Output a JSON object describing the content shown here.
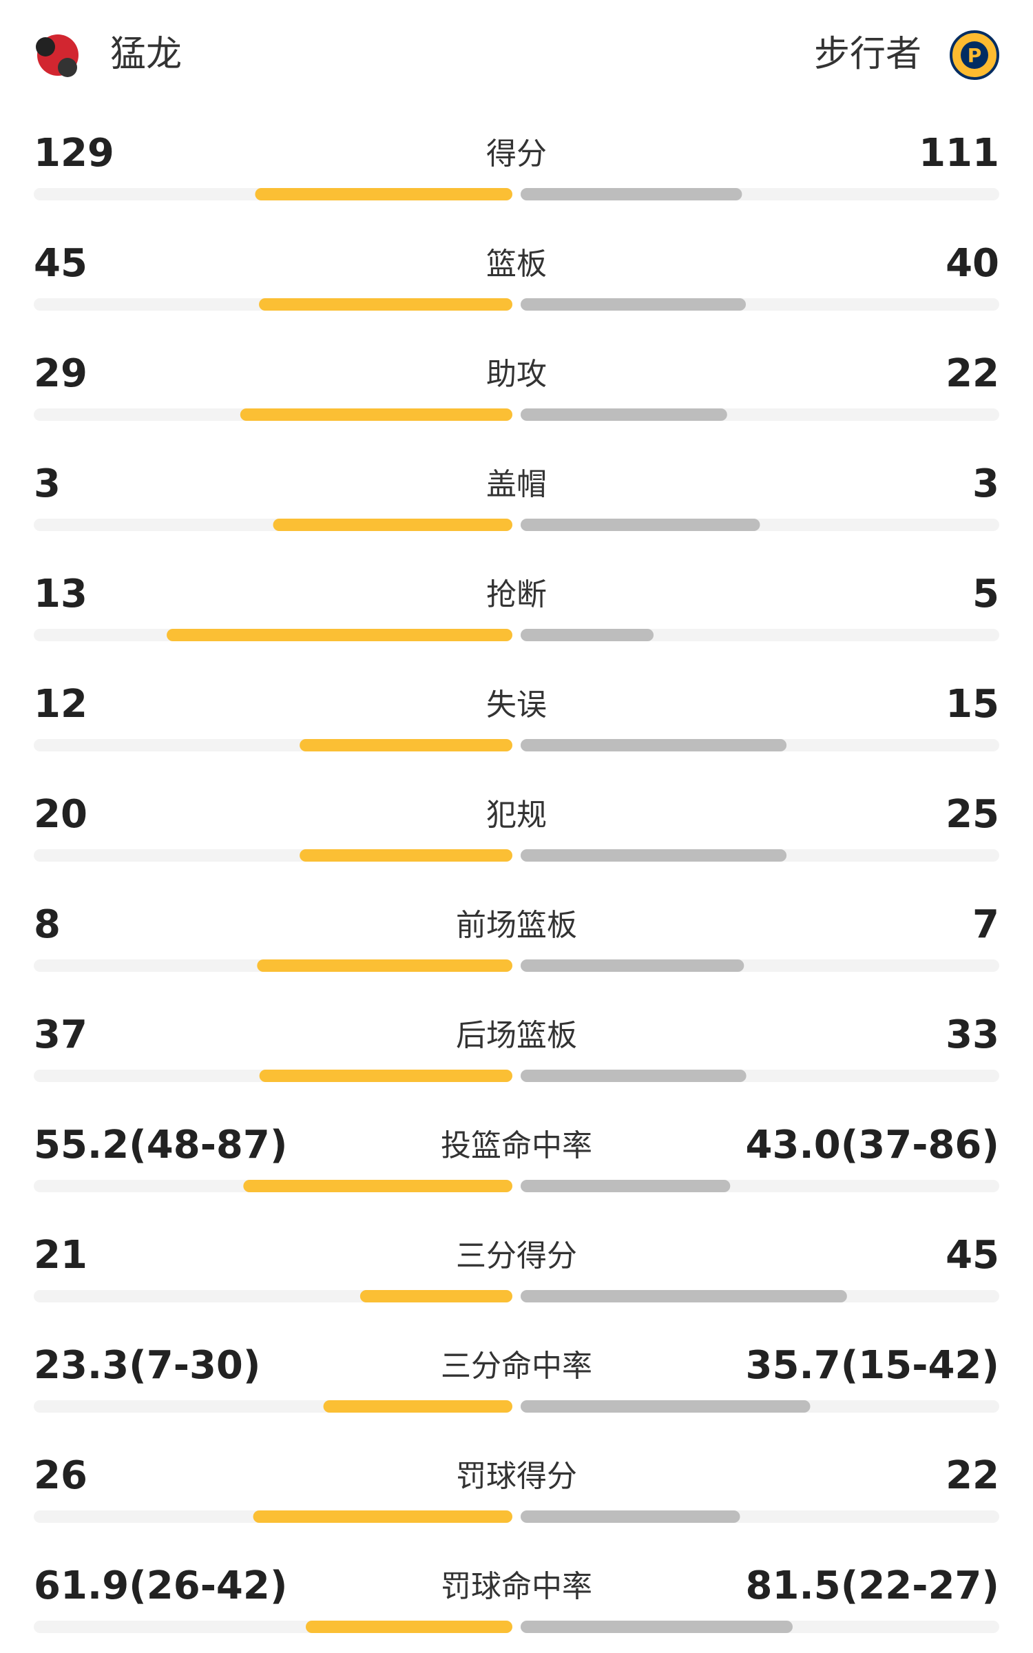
{
  "header": {
    "home": "猛龙",
    "away": "步行者"
  },
  "stats": [
    {
      "label": "得分",
      "left": 129,
      "right": 111
    },
    {
      "label": "篮板",
      "left": 45,
      "right": 40
    },
    {
      "label": "助攻",
      "left": 29,
      "right": 22
    },
    {
      "label": "盖帽",
      "left": 3,
      "right": 3
    },
    {
      "label": "抢断",
      "left": 13,
      "right": 5
    },
    {
      "label": "失误",
      "left": 12,
      "right": 15
    },
    {
      "label": "犯规",
      "left": 20,
      "right": 25
    },
    {
      "label": "前场篮板",
      "left": 8,
      "right": 7
    },
    {
      "label": "后场篮板",
      "left": 37,
      "right": 33
    },
    {
      "label": "投篮命中率",
      "left": {
        "value": 55.2,
        "label": "55.2(48-87)"
      },
      "right": {
        "value": 43.0,
        "label": "43.0(37-86)"
      }
    },
    {
      "label": "三分得分",
      "left": 21,
      "right": 45
    },
    {
      "label": "三分命中率",
      "left": {
        "value": 23.3,
        "label": "23.3(7-30)"
      },
      "right": {
        "value": 35.7,
        "label": "35.7(15-42)"
      }
    },
    {
      "label": "罚球得分",
      "left": 26,
      "right": 22
    },
    {
      "label": "罚球命中率",
      "left": {
        "value": 61.9,
        "label": "61.9(26-42)"
      },
      "right": {
        "value": 81.5,
        "label": "81.5(22-27)"
      }
    }
  ]
}
